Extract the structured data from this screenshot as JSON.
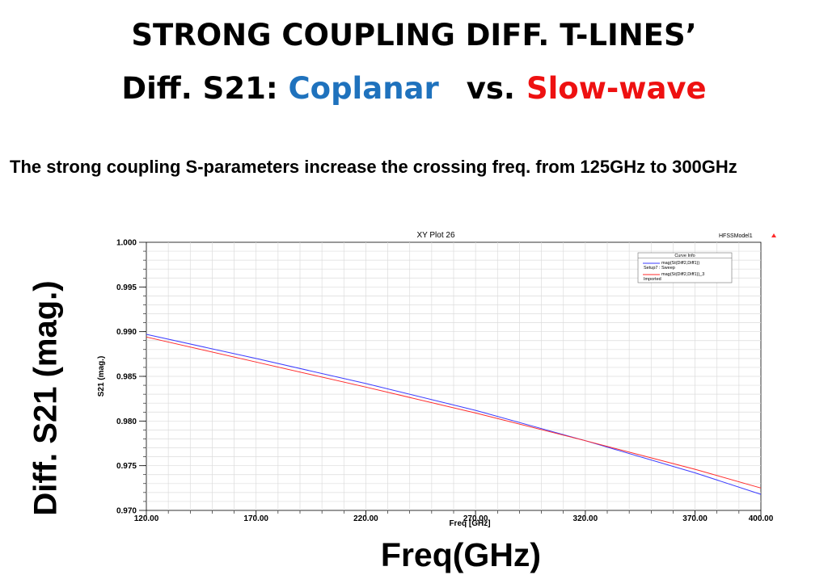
{
  "slide": {
    "title_line1": "STRONG COUPLING DIFF. T-LINES’",
    "title_line2_prefix": "Diff. S21: ",
    "title_line2_blue": "Coplanar",
    "title_line2_mid": "vs.",
    "title_line2_red": "Slow-wave",
    "description": "The strong coupling S-parameters increase the crossing freq. from 125GHz to 300GHz",
    "y_axis_label": "Diff. S21 (mag.)",
    "x_axis_label": "Freq(GHz)"
  },
  "colors": {
    "coplanar": "#1f72bd",
    "slow_wave": "#ee1111",
    "series_blue": "#3b3bff",
    "series_red": "#ff2a2a"
  },
  "chart_data": {
    "type": "line",
    "title": "XY Plot 26",
    "model_label": "HFSSModel1",
    "xlabel": "Freq [GHz]",
    "ylabel": "S21 (mag.)",
    "xlim": [
      120,
      400
    ],
    "ylim": [
      0.97,
      1.0
    ],
    "x_ticks": [
      "120.00",
      "170.00",
      "220.00",
      "270.00",
      "320.00",
      "370.00",
      "400.00"
    ],
    "y_ticks": [
      "0.970",
      "0.975",
      "0.980",
      "0.985",
      "0.990",
      "0.995",
      "1.000"
    ],
    "grid": true,
    "legend": {
      "title": "Curve Info",
      "placement": "top-right",
      "entries": [
        {
          "line1": "mag(St(Diff2,Diff1))",
          "line2": "Setup7 : Sweep"
        },
        {
          "line1": "mag(St(Diff2,Diff1))_3",
          "line2": "Imported"
        }
      ]
    },
    "series": [
      {
        "color": "#3b3bff",
        "x": [
          120,
          170,
          220,
          270,
          320,
          370,
          400
        ],
        "y": [
          0.9897,
          0.987,
          0.9842,
          0.9812,
          0.9778,
          0.9742,
          0.9718
        ]
      },
      {
        "color": "#ff2a2a",
        "x": [
          120,
          170,
          220,
          270,
          320,
          370,
          400
        ],
        "y": [
          0.9894,
          0.9866,
          0.9838,
          0.9809,
          0.9778,
          0.9746,
          0.9725
        ]
      }
    ]
  }
}
